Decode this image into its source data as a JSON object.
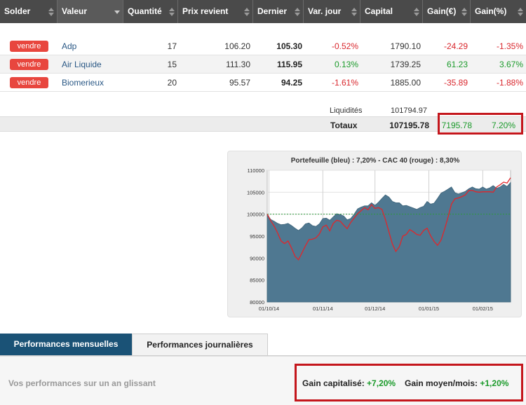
{
  "header": {
    "solder": "Solder",
    "valeur": "Valeur",
    "quantite": "Quantité",
    "prix_revient": "Prix revient",
    "dernier": "Dernier",
    "var_jour": "Var. jour",
    "capital": "Capital",
    "gain_eur": "Gain(€)",
    "gain_pct": "Gain(%)"
  },
  "rows": [
    {
      "action": "vendre",
      "valeur": "Adp",
      "quantite": "17",
      "prix_revient": "106.20",
      "dernier": "105.30",
      "var_jour": "-0.52%",
      "capital": "1790.10",
      "gain_eur": "-24.29",
      "gain_pct": "-1.35%"
    },
    {
      "action": "vendre",
      "valeur": "Air Liquide",
      "quantite": "15",
      "prix_revient": "111.30",
      "dernier": "115.95",
      "var_jour": "0.13%",
      "capital": "1739.25",
      "gain_eur": "61.23",
      "gain_pct": "3.67%"
    },
    {
      "action": "vendre",
      "valeur": "Biomerieux",
      "quantite": "20",
      "prix_revient": "95.57",
      "dernier": "94.25",
      "var_jour": "-1.61%",
      "capital": "1885.00",
      "gain_eur": "-35.89",
      "gain_pct": "-1.88%"
    }
  ],
  "summary": {
    "liquidites_label": "Liquidités",
    "liquidites_value": "101794.97",
    "totaux_label": "Totaux",
    "totaux_value": "107195.78",
    "gain_eur": "7195.78",
    "gain_pct": "7.20%"
  },
  "colors": {
    "negative": "#d9272d",
    "positive": "#1a9a2a",
    "highlight_box": "#c4161c",
    "tab_active": "#1a5276",
    "portfolio_area": "#4f7891",
    "cac_line": "#e0262b",
    "baseline": "#2e9a3a"
  },
  "chart_data": {
    "type": "area",
    "title": "Portefeuille (bleu) : 7,20% - CAC 40 (rouge) : 8,30%",
    "x_tick_labels": [
      "01/10/14",
      "01/11/14",
      "01/12/14",
      "01/01/15",
      "01/02/15"
    ],
    "y_tick_labels": [
      "80000",
      "85000",
      "90000",
      "95000",
      "100000",
      "105000",
      "110000"
    ],
    "ylim": [
      80000,
      110000
    ],
    "grid": true,
    "baseline": 100000,
    "x_days": [
      0,
      2,
      4,
      6,
      8,
      10,
      12,
      14,
      16,
      18,
      20,
      22,
      24,
      26,
      28,
      30,
      32,
      34,
      36,
      38,
      40,
      42,
      44,
      46,
      48,
      50,
      52,
      54,
      56,
      58,
      60,
      62,
      64,
      66,
      68,
      70,
      72,
      74,
      76,
      78,
      80,
      82,
      84,
      86,
      88,
      90,
      92,
      94,
      96,
      98,
      100,
      102,
      104,
      106,
      108,
      110,
      112,
      114,
      116,
      118,
      120,
      122,
      124,
      126,
      128,
      130,
      132,
      134,
      136,
      138,
      140
    ],
    "series": [
      {
        "name": "Portefeuille",
        "color": "#4f7891",
        "values": [
          100000,
          98800,
          98400,
          97900,
          97600,
          97700,
          97900,
          97400,
          96800,
          96300,
          96900,
          97800,
          98000,
          97400,
          97200,
          97800,
          99000,
          99100,
          98600,
          99400,
          100100,
          99900,
          99600,
          98700,
          99000,
          100000,
          101200,
          101600,
          101900,
          101900,
          102600,
          102000,
          102700,
          103600,
          104400,
          103900,
          102900,
          102600,
          102600,
          101900,
          102000,
          101700,
          101400,
          101100,
          101500,
          101800,
          102900,
          102300,
          102500,
          103600,
          104800,
          105200,
          105700,
          106200,
          104900,
          104600,
          104900,
          105200,
          105800,
          106200,
          105800,
          105700,
          106200,
          105700,
          106000,
          106500,
          105900,
          106200,
          106800,
          106300,
          107200
        ]
      },
      {
        "name": "CAC 40",
        "color": "#e0262b",
        "values": [
          100000,
          98500,
          97300,
          95700,
          93900,
          93300,
          93900,
          92300,
          90400,
          89600,
          91200,
          92800,
          94200,
          94300,
          94600,
          95500,
          97100,
          97500,
          96200,
          97900,
          98600,
          98400,
          97500,
          96700,
          98100,
          99100,
          100100,
          100800,
          101500,
          101000,
          102200,
          101300,
          101500,
          101100,
          98800,
          96000,
          93200,
          91500,
          92600,
          95000,
          95400,
          96500,
          96000,
          95400,
          95200,
          96300,
          96800,
          95100,
          93800,
          92900,
          94100,
          96500,
          99300,
          102300,
          103500,
          103700,
          104000,
          104400,
          105400,
          105400,
          105100,
          105000,
          105100,
          105100,
          105100,
          105000,
          106200,
          106700,
          107300,
          107100,
          108300
        ]
      }
    ]
  },
  "tabs": {
    "active": "Performances mensuelles",
    "inactive": "Performances journalières"
  },
  "performance": {
    "subtitle": "Vos performances sur un an glissant",
    "gain_cap_label": "Gain capitalisé:",
    "gain_cap_value": "+7,20%",
    "gain_moy_label": "Gain moyen/mois:",
    "gain_moy_value": "+1,20%"
  }
}
